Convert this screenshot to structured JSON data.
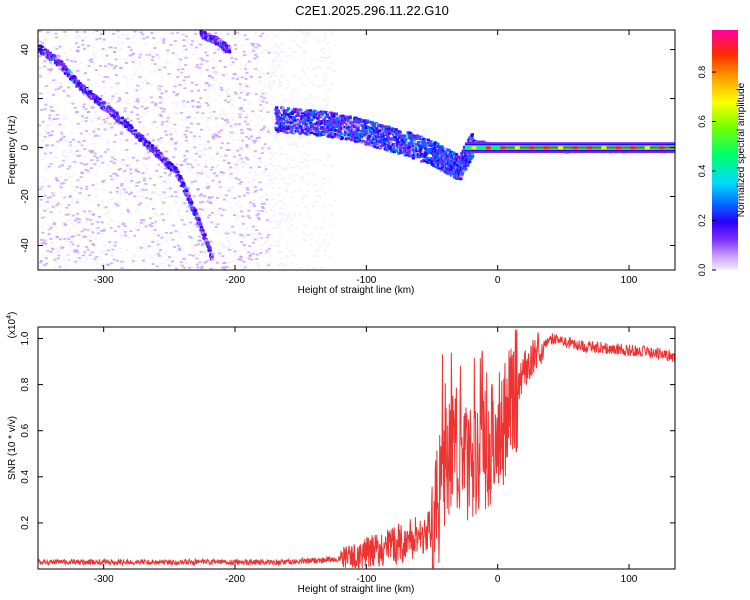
{
  "title": "C2E1.2025.296.11.22.G10",
  "chart_data": [
    {
      "type": "heatmap",
      "xlabel": "Height of straight line (km)",
      "ylabel": "Frequency (Hz)",
      "xlim": [
        -350,
        135
      ],
      "ylim": [
        -50,
        48
      ],
      "xticks": [
        -300,
        -200,
        -100,
        0,
        100
      ],
      "yticks": [
        -40,
        -20,
        0,
        20,
        40
      ],
      "colorbar": {
        "label": "Normalized spectral amplitude",
        "range": [
          0,
          0.97
        ],
        "ticks": [
          0.0,
          0.2,
          0.4,
          0.6,
          0.8
        ],
        "colormap": [
          "#f4ecfd",
          "#c79bff",
          "#7a2cff",
          "#2a00ff",
          "#0070ff",
          "#00d9ff",
          "#00ff6a",
          "#7cff00",
          "#ffff00",
          "#ffa000",
          "#ff2a00",
          "#ff00a0"
        ]
      },
      "traces": [
        {
          "name": "",
          "x": [
            -350,
            -335,
            -320,
            -300,
            -280,
            -260,
            -245,
            -230,
            -218
          ],
          "y": [
            41,
            35,
            26,
            17,
            8,
            -2,
            -10,
            -28,
            -45
          ]
        },
        {
          "name": "",
          "x": [
            -227,
            -215,
            -205
          ],
          "y": [
            47,
            44,
            40
          ]
        },
        {
          "name": "",
          "x": [
            -170,
            -150,
            -130,
            -110,
            -90,
            -70,
            -50,
            -40,
            -30,
            -20,
            0,
            50,
            100,
            135
          ],
          "y": [
            12,
            11,
            10,
            8,
            5,
            2,
            -2,
            -5,
            -8,
            2,
            0.5,
            0,
            0,
            0
          ]
        }
      ]
    },
    {
      "type": "line",
      "xlabel": "Height of straight line (km)",
      "ylabel": "SNR (10 * v/v)",
      "ylabel_top": "(x10",
      "ylabel_top_exp": "4",
      "ylabel_top_close": ")",
      "xlim": [
        -350,
        135
      ],
      "ylim": [
        0,
        1.05
      ],
      "xticks": [
        -300,
        -200,
        -100,
        0,
        100
      ],
      "yticks": [
        0.2,
        0.4,
        0.6,
        0.8,
        1.0
      ],
      "color": "#ee3333",
      "series": [
        {
          "x": [
            -350,
            -300,
            -250,
            -200,
            -160,
            -130,
            -110,
            -100,
            -80,
            -65,
            -50,
            -42,
            -35,
            -28,
            -20,
            -12,
            -5,
            0,
            10,
            20,
            30,
            40,
            50,
            60,
            80,
            100,
            120,
            135
          ],
          "y": [
            0.03,
            0.03,
            0.03,
            0.03,
            0.03,
            0.04,
            0.05,
            0.07,
            0.1,
            0.13,
            0.18,
            0.35,
            0.55,
            0.5,
            0.42,
            0.5,
            0.55,
            0.58,
            0.72,
            0.86,
            0.95,
            1.0,
            0.99,
            0.97,
            0.96,
            0.95,
            0.94,
            0.92
          ]
        }
      ]
    }
  ]
}
